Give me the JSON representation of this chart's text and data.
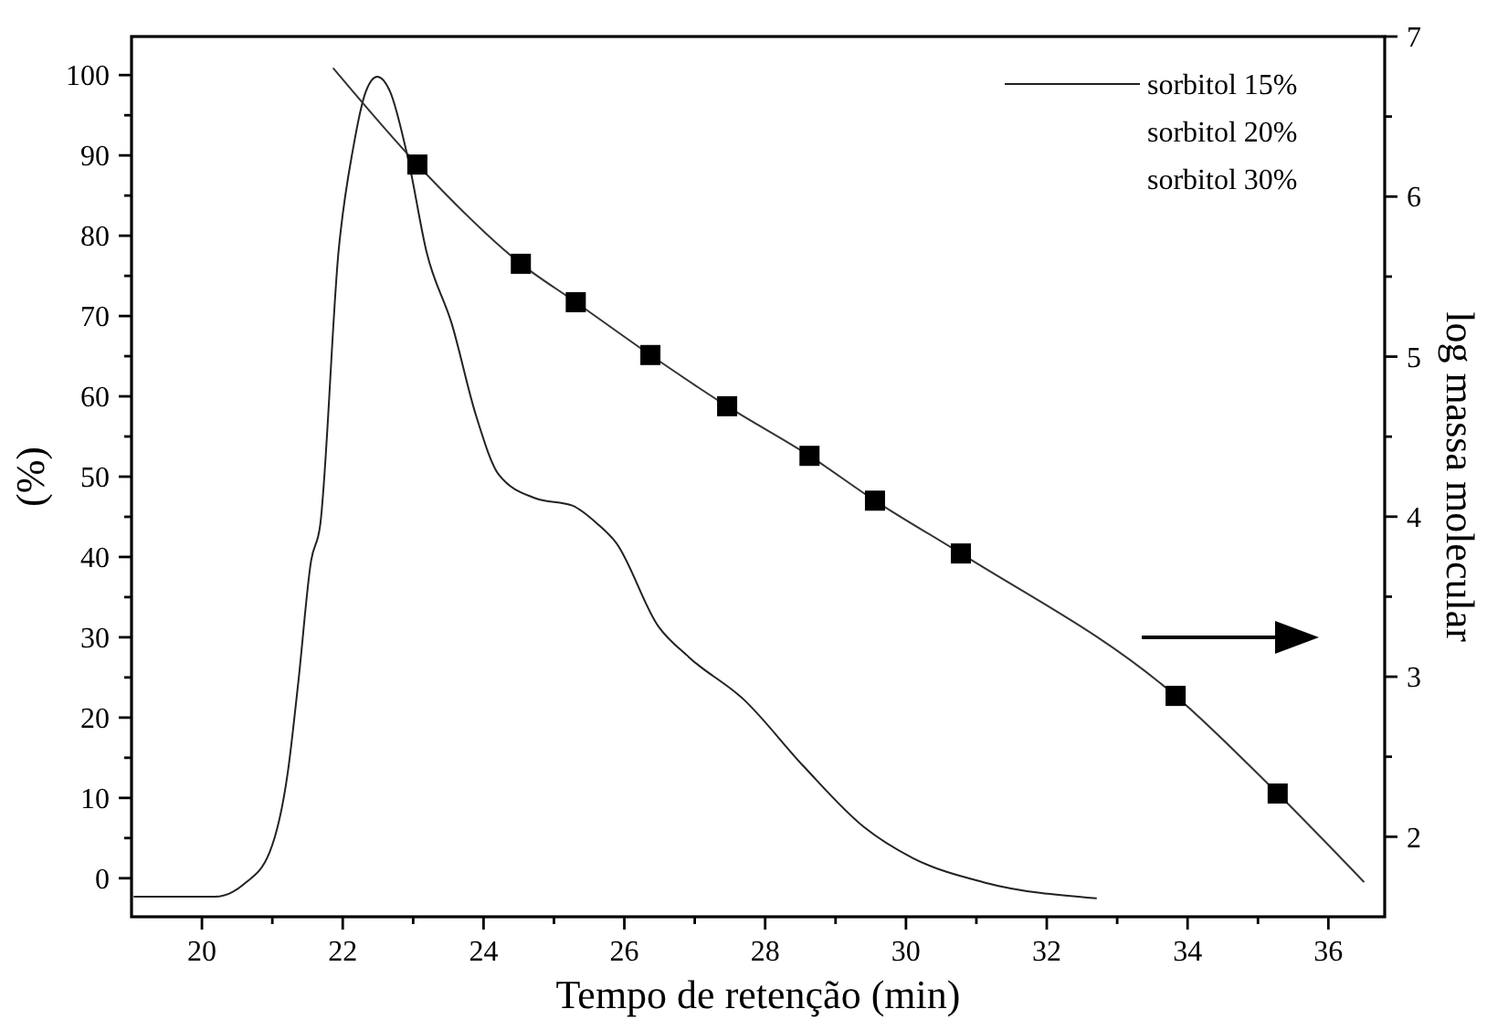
{
  "chart_data": {
    "type": "line",
    "xlabel": "Tempo de retenção (min)",
    "ylabel": "(%)",
    "y2label": "log massa molecular",
    "xlim": [
      19,
      36.8
    ],
    "ylim": [
      -4.8,
      104.8
    ],
    "y2lim": [
      1.5,
      7
    ],
    "xticks": [
      20,
      {
        "value": 21,
        "label": null
      },
      22,
      {
        "value": 23,
        "label": null
      },
      24,
      {
        "value": 25,
        "label": null
      },
      26,
      {
        "value": 27,
        "label": null
      },
      28,
      {
        "value": 29,
        "label": null
      },
      30,
      {
        "value": 31,
        "label": null
      },
      32,
      {
        "value": 33,
        "label": null
      },
      34,
      {
        "value": 35,
        "label": null
      },
      36
    ],
    "yticks": [
      0,
      {
        "value": 5,
        "label": null
      },
      10,
      {
        "value": 15,
        "label": null
      },
      20,
      {
        "value": 25,
        "label": null
      },
      30,
      {
        "value": 35,
        "label": null
      },
      40,
      {
        "value": 45,
        "label": null
      },
      50,
      {
        "value": 55,
        "label": null
      },
      60,
      {
        "value": 65,
        "label": null
      },
      70,
      {
        "value": 75,
        "label": null
      },
      80,
      {
        "value": 85,
        "label": null
      },
      90,
      {
        "value": 95,
        "label": null
      },
      100
    ],
    "y2ticks": [
      2,
      {
        "value": 2.5,
        "label": null
      },
      3,
      {
        "value": 3.5,
        "label": null
      },
      4,
      {
        "value": 4.5,
        "label": null
      },
      5,
      {
        "value": 5.5,
        "label": null
      },
      6,
      {
        "value": 6.5,
        "label": null
      },
      7
    ],
    "grid": false,
    "legend": "top right",
    "series": [
      {
        "name": "sorbitol 15%",
        "color": "#222222",
        "marker": "none",
        "x": [
          19.04,
          19.2,
          20.18,
          20.6,
          20.96,
          21.22,
          21.37,
          21.55,
          21.68,
          21.94,
          22.15,
          22.33,
          22.49,
          22.67,
          22.93,
          23.19,
          23.55,
          23.89,
          24.22,
          24.74,
          25.26,
          25.62,
          25.88,
          26.48,
          26.92,
          27.69,
          28.55,
          29.4,
          30.1,
          31.1,
          32.7
        ],
        "values": [
          -2.3,
          -2.3,
          -2.3,
          -0.7,
          3.2,
          13.2,
          24.5,
          39.5,
          44,
          78,
          91,
          98,
          99.8,
          98,
          89.5,
          78,
          69,
          57.7,
          50.2,
          47.3,
          46.4,
          44.1,
          41.8,
          31.4,
          27.5,
          22.3,
          13.9,
          6.4,
          2.5,
          -0.5,
          -2.5
        ]
      },
      {
        "type": "line",
        "axis": "y2",
        "color": "#333333",
        "marker": "none",
        "x": [
          21.87,
          23.06,
          24.53,
          25.31,
          26.37,
          27.46,
          28.63,
          29.56,
          30.78,
          33.83,
          35.28,
          36.5
        ],
        "values": [
          6.8,
          6.2,
          5.58,
          5.34,
          5.01,
          4.69,
          4.38,
          4.1,
          3.77,
          2.88,
          2.27,
          1.72
        ]
      },
      {
        "type": "scatter",
        "axis": "y2",
        "color": "#000000",
        "marker": "square",
        "x": [
          23.06,
          24.53,
          25.31,
          26.37,
          27.46,
          28.63,
          29.56,
          30.78,
          33.83,
          35.28
        ],
        "values": [
          6.2,
          5.58,
          5.34,
          5.01,
          4.69,
          4.38,
          4.1,
          3.77,
          2.88,
          2.27
        ]
      }
    ],
    "annotations": [
      "sorbitol 20%",
      "sorbitol 30%"
    ]
  }
}
